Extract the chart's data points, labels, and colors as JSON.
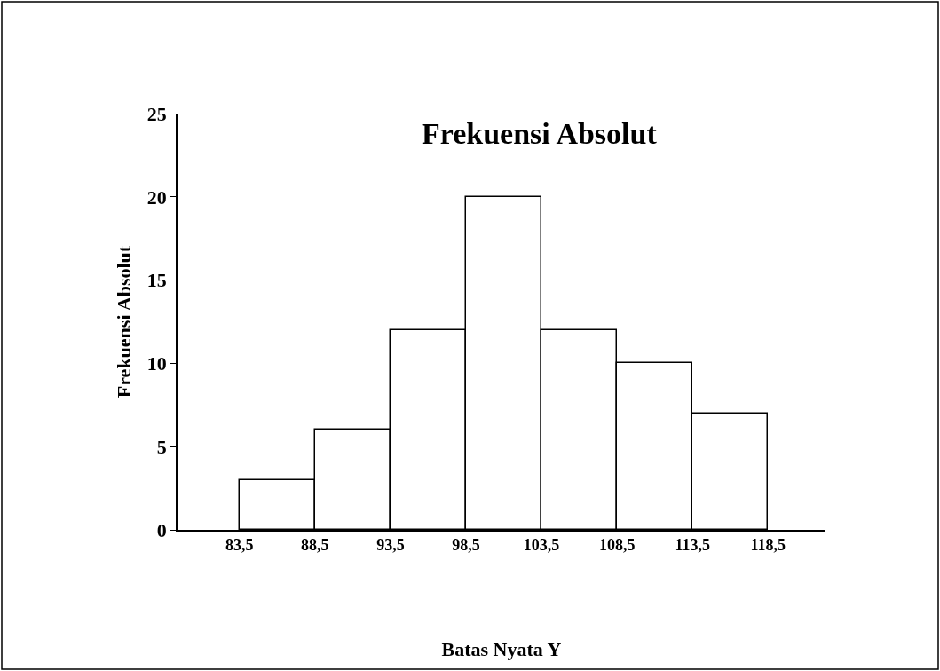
{
  "chart_data": {
    "type": "histogram",
    "title": "Frekuensi Absolut",
    "xlabel": "Batas Nyata Y",
    "ylabel": "Frekuensi Absolut",
    "bins": [
      83.5,
      88.5,
      93.5,
      98.5,
      103.5,
      108.5,
      113.5,
      118.5
    ],
    "values": [
      3,
      6,
      12,
      20,
      12,
      10,
      7
    ],
    "color": "#ffffff",
    "xlim": [
      79.4,
      122.3
    ],
    "xticks": [
      {
        "value": 83.5,
        "label": "83,5"
      },
      {
        "value": 88.5,
        "label": "88,5"
      },
      {
        "value": 93.5,
        "label": "93,5"
      },
      {
        "value": 98.5,
        "label": "98,5"
      },
      {
        "value": 103.5,
        "label": "103,5"
      },
      {
        "value": 108.5,
        "label": "108,5"
      },
      {
        "value": 113.5,
        "label": "113,5"
      },
      {
        "value": 118.5,
        "label": "118,5"
      }
    ],
    "ylim": [
      0,
      25
    ],
    "yticks": [
      0,
      5,
      10,
      15,
      20,
      25
    ]
  }
}
